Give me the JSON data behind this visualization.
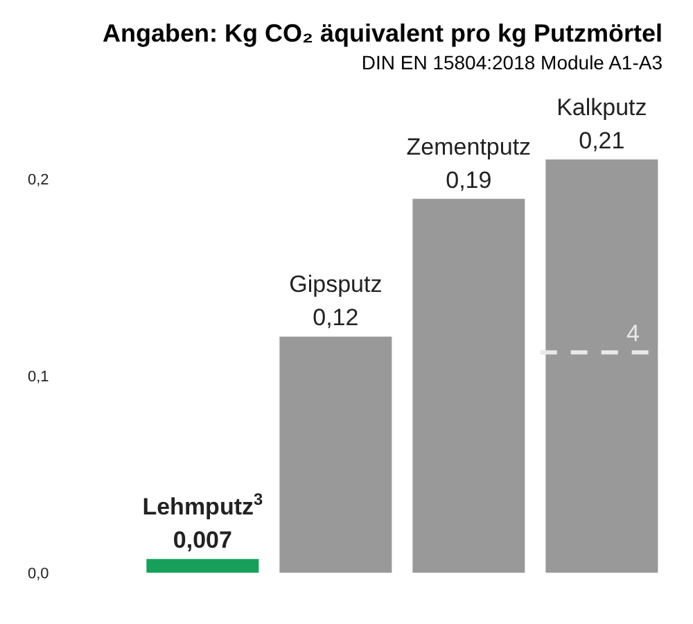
{
  "chart_data": {
    "type": "bar",
    "title": "Angaben: Kg CO₂ äquivalent pro kg Putzmörtel",
    "subtitle": "DIN EN 15804:2018 Module A1-A3",
    "categories": [
      "Lehmputz$^{3}$",
      "Gipsputz",
      "Zementputz",
      "Kalkputz"
    ],
    "values": [
      0.007,
      0.12,
      0.19,
      0.21
    ],
    "value_labels": [
      "0,007",
      "0,12",
      "0,19",
      "0,21"
    ],
    "colors": [
      "#16a05a",
      "#999999",
      "#999999",
      "#999999"
    ],
    "ylim": [
      0,
      0.21
    ],
    "yticks": [
      {
        "value": 0,
        "label": "0,0"
      },
      {
        "value": 0.1,
        "label": "0,1"
      },
      {
        "value": 0.2,
        "label": "0,2"
      }
    ],
    "tick_labels": "y",
    "ref_lines": [
      {
        "axis": "y",
        "value": 0.112,
        "color": "#e8e8e8",
        "line_style": "dashed"
      }
    ],
    "annotations": [
      "4"
    ]
  }
}
